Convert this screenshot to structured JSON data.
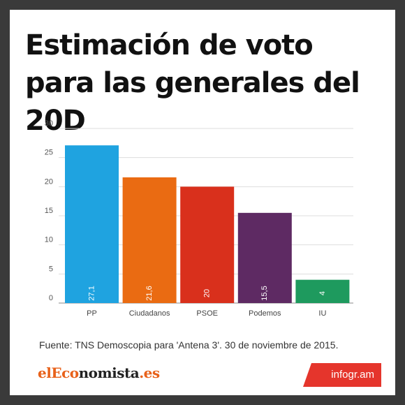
{
  "title": "Estimación de voto para las generales del 20D",
  "source_text": "Fuente:  TNS Demoscopia para 'Antena 3'.  30 de noviembre de 2015.",
  "brand": {
    "part1": "elEco",
    "part2": "nomista",
    "part3": ".es"
  },
  "badge": "infogr.am",
  "chart_data": {
    "type": "bar",
    "title": "Estimación de voto para las generales del 20D",
    "xlabel": "",
    "ylabel": "",
    "ylim": [
      0,
      30
    ],
    "yticks": [
      "0",
      "5",
      "10",
      "15",
      "20",
      "25",
      "30"
    ],
    "grid": true,
    "categories": [
      "PP",
      "Ciudadanos",
      "PSOE",
      "Podemos",
      "IU"
    ],
    "values": [
      27.1,
      21.6,
      20,
      15.5,
      4
    ],
    "value_labels": [
      "27,1",
      "21,6",
      "20",
      "15,5",
      "4"
    ],
    "colors": [
      "#1fa3e0",
      "#ea6b12",
      "#d9301c",
      "#5e2a63",
      "#1e9a5e"
    ]
  }
}
